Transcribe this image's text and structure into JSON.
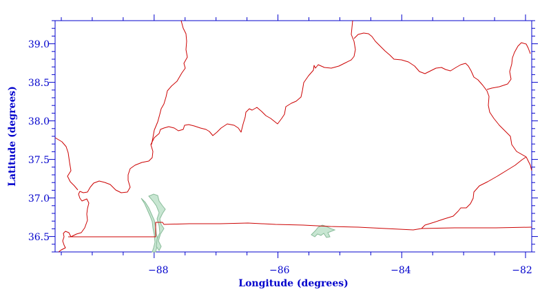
{
  "chart_data": {
    "type": "map",
    "title": "",
    "xlabel": "Longitude (degrees)",
    "ylabel": "Latitude (degrees)",
    "xlim": [
      -89.6,
      -81.9
    ],
    "ylim": [
      36.3,
      39.3
    ],
    "x_ticks": [
      -88,
      -86,
      -84,
      -82
    ],
    "x_tick_labels": [
      "−88",
      "−86",
      "−84",
      "−82"
    ],
    "y_ticks": [
      36.5,
      37.0,
      37.5,
      38.0,
      38.5,
      39.0
    ],
    "y_tick_labels": [
      "36.5",
      "37.0",
      "37.5",
      "38.0",
      "38.5",
      "39.0"
    ],
    "colors": {
      "axis": "#0000cc",
      "border": "#cc0000",
      "water_fill": "#c8e6d2",
      "water_edge": "#88bb99"
    }
  }
}
